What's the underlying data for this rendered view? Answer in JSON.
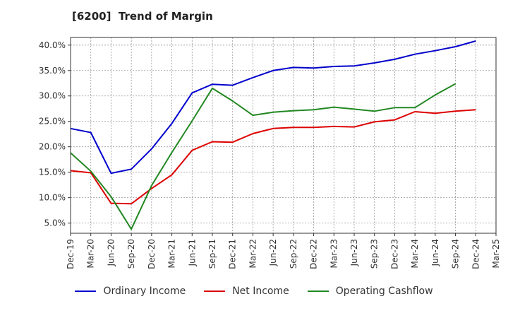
{
  "chart_title": "[6200]  Trend of Margin",
  "chart_data": {
    "type": "line",
    "title": "[6200]  Trend of Margin",
    "xlabel": "",
    "ylabel": "",
    "x": [
      "Dec-19",
      "Mar-20",
      "Jun-20",
      "Sep-20",
      "Dec-20",
      "Mar-21",
      "Jun-21",
      "Sep-21",
      "Dec-21",
      "Mar-22",
      "Jun-22",
      "Sep-22",
      "Dec-22",
      "Mar-23",
      "Jun-23",
      "Sep-23",
      "Dec-23",
      "Mar-24",
      "Jun-24",
      "Sep-24",
      "Dec-24",
      "Mar-25"
    ],
    "ylim": [
      3.0,
      41.5
    ],
    "yticks": [
      5.0,
      10.0,
      15.0,
      20.0,
      25.0,
      30.0,
      35.0,
      40.0
    ],
    "ytick_labels": [
      "5.0%",
      "10.0%",
      "15.0%",
      "20.0%",
      "25.0%",
      "30.0%",
      "35.0%",
      "40.0%"
    ],
    "grid": true,
    "legend_position": "bottom",
    "series": [
      {
        "name": "Ordinary Income",
        "color": "#0000cc",
        "values": [
          23.6,
          22.8,
          14.8,
          15.6,
          19.6,
          24.6,
          30.6,
          32.3,
          32.1,
          33.6,
          35.0,
          35.6,
          35.5,
          35.8,
          35.9,
          36.5,
          37.2,
          38.2,
          38.9,
          39.7,
          40.8,
          null
        ]
      },
      {
        "name": "Net Income",
        "color": "#dd0000",
        "values": [
          15.3,
          14.9,
          8.9,
          8.8,
          11.8,
          14.5,
          19.3,
          21.0,
          20.9,
          22.6,
          23.6,
          23.8,
          23.8,
          24.0,
          23.9,
          24.9,
          25.3,
          26.9,
          26.6,
          27.0,
          27.3,
          null
        ]
      },
      {
        "name": "Operating Cashflow",
        "color": "#228822",
        "values": [
          18.8,
          15.2,
          10.2,
          3.8,
          12.4,
          18.9,
          25.1,
          31.5,
          29.0,
          26.2,
          26.8,
          27.1,
          27.3,
          27.8,
          27.4,
          27.0,
          27.7,
          27.7,
          30.2,
          32.4,
          null,
          null
        ]
      }
    ]
  }
}
